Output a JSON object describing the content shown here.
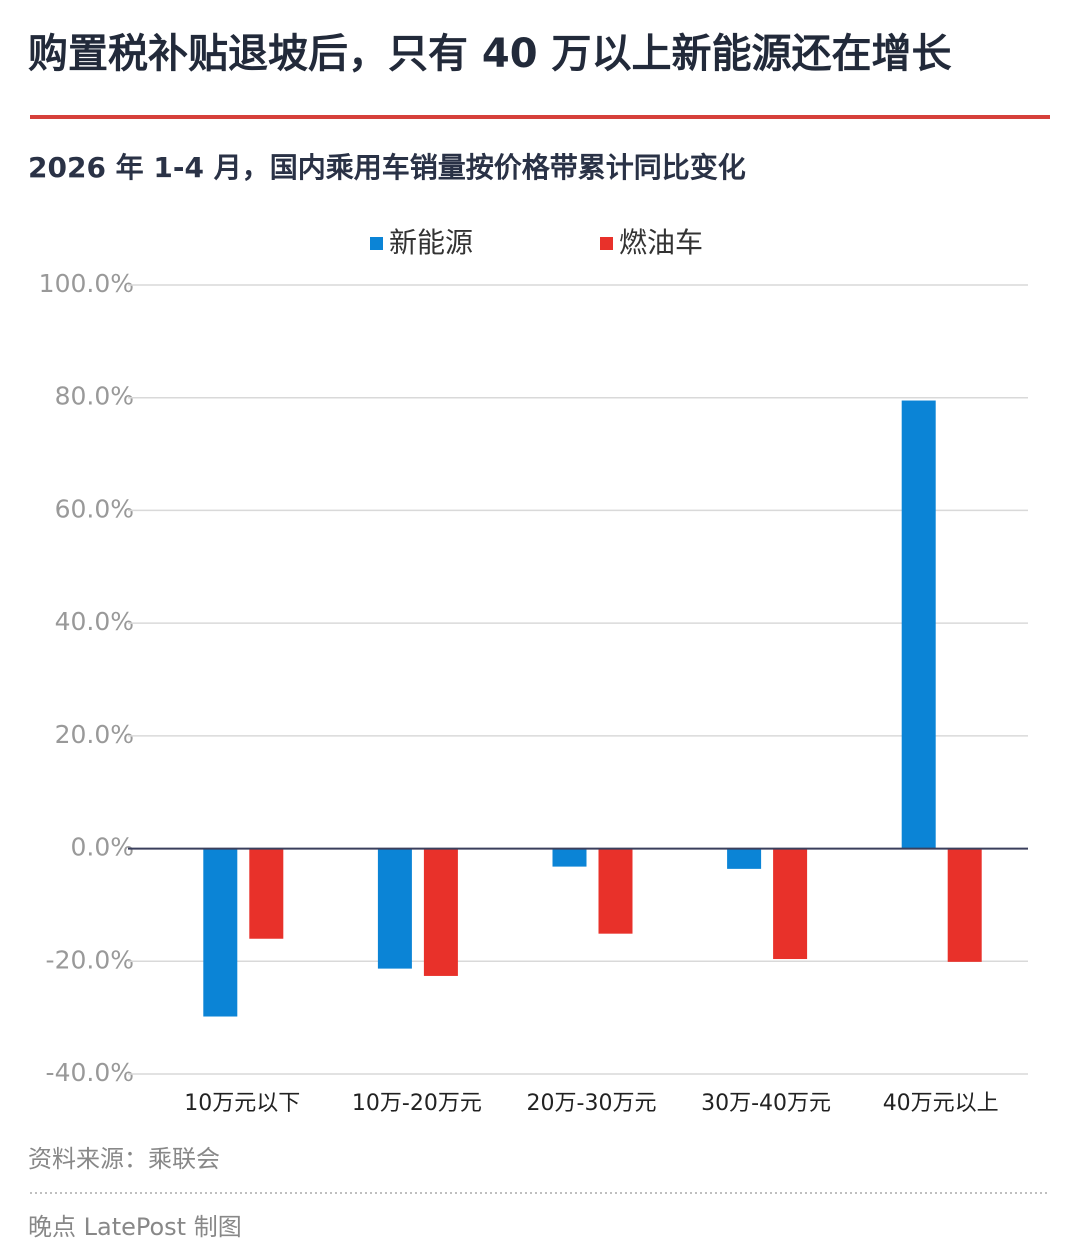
{
  "chart_data": {
    "type": "bar",
    "title": "购置税补贴退坡后，只有 40 万以上新能源还在增长",
    "subtitle": "2026 年 1-4 月，国内乘用车销量按价格带累计同比变化",
    "categories": [
      "10万元以下",
      "10万-20万元",
      "20万-30万元",
      "30万-40万元",
      "40万元以上"
    ],
    "series": [
      {
        "name": "新能源",
        "color": "#0b84d6",
        "values": [
          -29.8,
          -21.3,
          -3.2,
          -3.6,
          79.5
        ]
      },
      {
        "name": "燃油车",
        "color": "#e8312a",
        "values": [
          -16.0,
          -22.6,
          -15.1,
          -19.6,
          -20.1
        ]
      }
    ],
    "ylim": [
      -40,
      100
    ],
    "yticks": [
      {
        "value": -40,
        "label": "-40.0%"
      },
      {
        "value": -20,
        "label": "-20.0%"
      },
      {
        "value": 0,
        "label": "0.0%"
      },
      {
        "value": 20,
        "label": "20.0%"
      },
      {
        "value": 40,
        "label": "40.0%"
      },
      {
        "value": 60,
        "label": "60.0%"
      },
      {
        "value": 80,
        "label": "80.0%"
      },
      {
        "value": 100,
        "label": "100.0%"
      }
    ],
    "grid": true,
    "legend": "top",
    "source": "资料来源：乘联会",
    "credit": "晚点 LatePost 制图"
  }
}
